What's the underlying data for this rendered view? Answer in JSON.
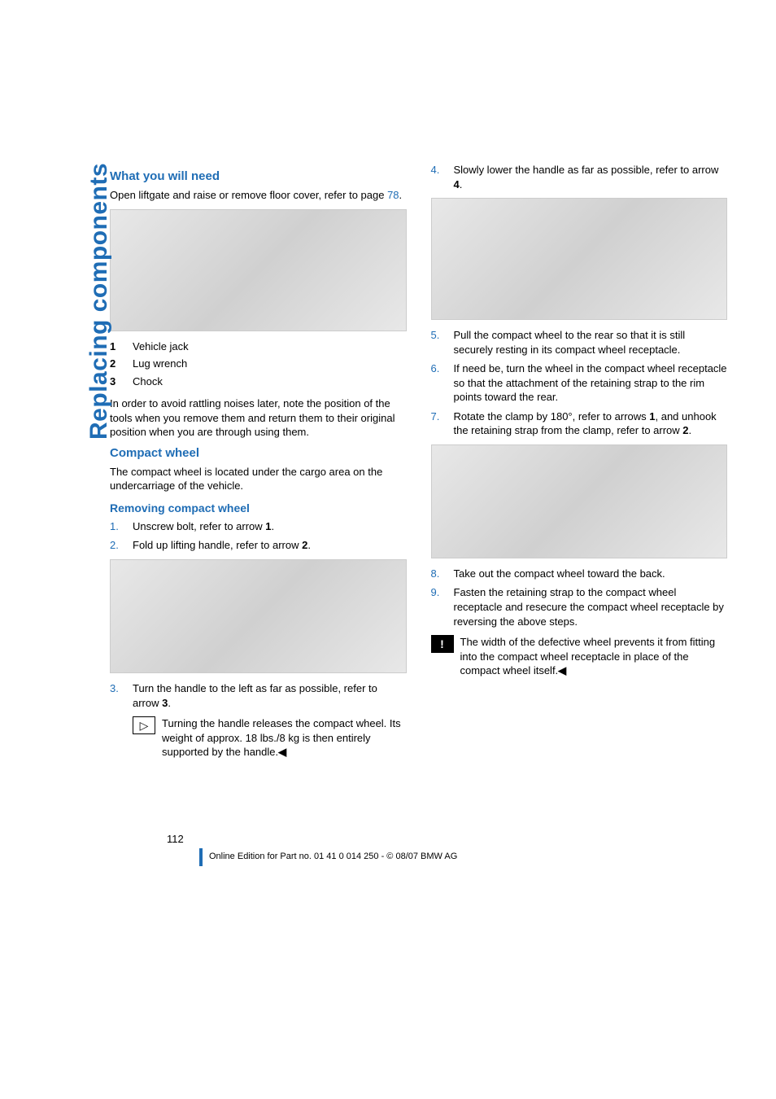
{
  "sidebar": {
    "label": "Replacing components"
  },
  "col1": {
    "h_need": "What you will need",
    "p_need": "Open liftgate and raise or remove floor cover, refer to page ",
    "p_need_link": "78",
    "p_need_after": ".",
    "img1_h": 150,
    "legend": [
      {
        "num": "1",
        "text": "Vehicle jack"
      },
      {
        "num": "2",
        "text": "Lug wrench"
      },
      {
        "num": "3",
        "text": "Chock"
      }
    ],
    "p_rattle": "In order to avoid rattling noises later, note the position of the tools when you remove them and return them to their original position when you are through using them.",
    "h_compact": "Compact wheel",
    "p_compact": "The compact wheel is located under the cargo area on the undercarriage of the vehicle.",
    "h_remove": "Removing compact wheel",
    "steps12": [
      {
        "num": "1.",
        "text": "Unscrew bolt, refer to arrow ",
        "bold": "1",
        "after": "."
      },
      {
        "num": "2.",
        "text": "Fold up lifting handle, refer to arrow ",
        "bold": "2",
        "after": "."
      }
    ],
    "img2_h": 140,
    "step3": {
      "num": "3.",
      "text": "Turn the handle to the left as far as possible, refer to arrow ",
      "bold": "3",
      "after": "."
    },
    "note": "Turning the handle releases the compact wheel. Its weight of approx. 18 lbs./8 kg is then entirely supported by the handle."
  },
  "col2": {
    "step4": {
      "num": "4.",
      "text": "Slowly lower the handle as far as possible, refer to arrow ",
      "bold": "4",
      "after": "."
    },
    "img3_h": 150,
    "steps567": [
      {
        "num": "5.",
        "text": "Pull the compact wheel to the rear so that it is still securely resting in its compact wheel receptacle."
      },
      {
        "num": "6.",
        "text": "If need be, turn the wheel in the compact wheel receptacle so that the attachment of the retaining strap to the rim points toward the rear."
      },
      {
        "num": "7.",
        "pre": "Rotate the clamp by 180°, refer to arrows ",
        "b1": "1",
        "mid": ", and unhook the retaining strap from the clamp, refer to arrow ",
        "b2": "2",
        "after": "."
      }
    ],
    "img4_h": 140,
    "steps89": [
      {
        "num": "8.",
        "text": "Take out the compact wheel toward the back."
      },
      {
        "num": "9.",
        "text": "Fasten the retaining strap to the compact wheel receptacle and resecure the compact wheel receptacle by reversing the above steps."
      }
    ],
    "warn": "The width of the defective wheel prevents it from fitting into the compact wheel receptacle in place of the compact wheel itself."
  },
  "footer": {
    "page": "112",
    "line": "Online Edition for Part no. 01 41 0 014 250 - © 08/07 BMW AG"
  },
  "marks": {
    "end": "◀",
    "tri": "▷",
    "excl": "!"
  }
}
